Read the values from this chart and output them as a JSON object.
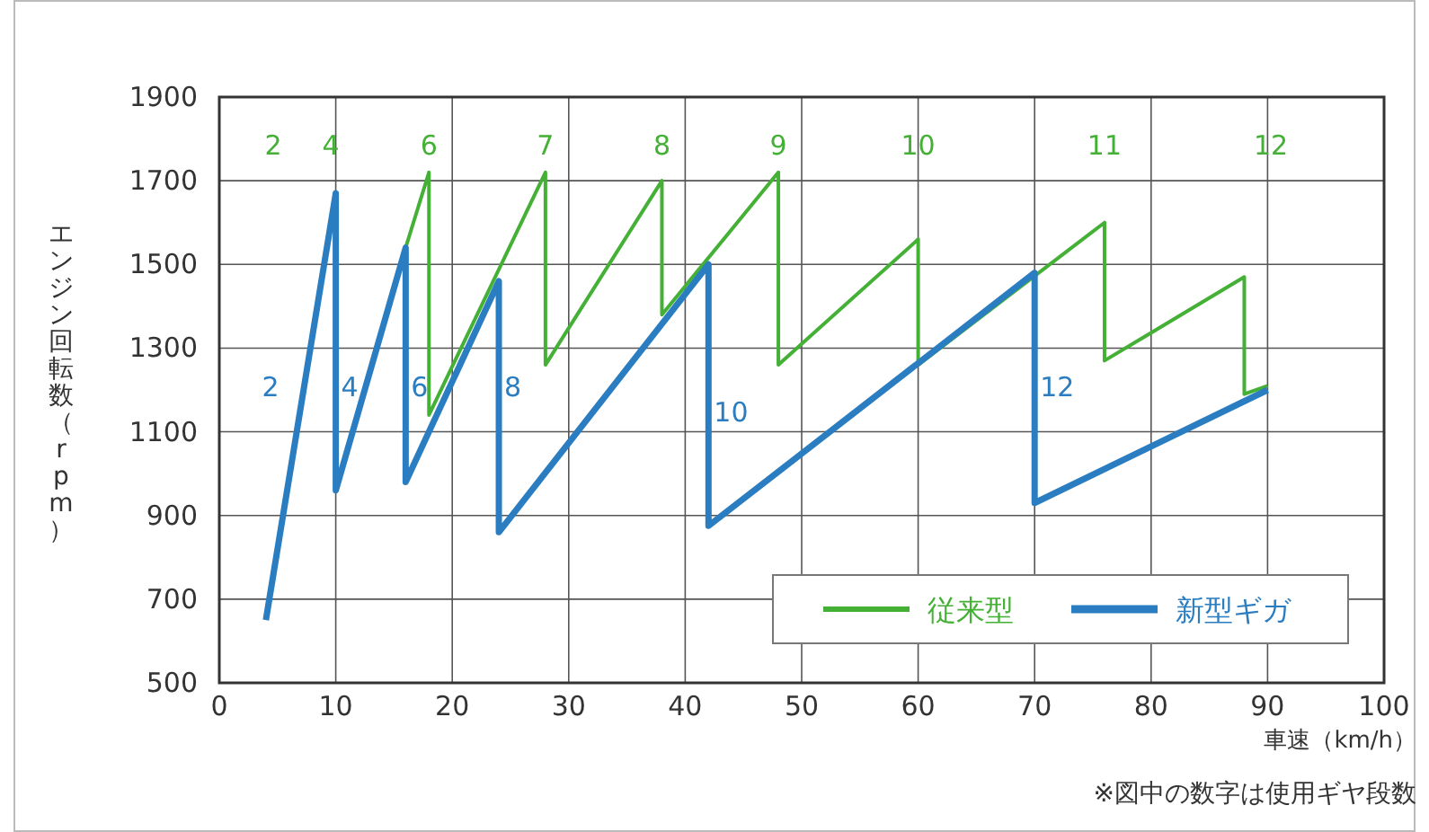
{
  "chart_data": {
    "type": "line",
    "xlabel": "車速（km/h）",
    "ylabel": "エンジン回転数（rpm）",
    "series": [
      {
        "name": "従来型",
        "color": "#44b035",
        "x": [
          16,
          18,
          18,
          28,
          28,
          38,
          38,
          48,
          48,
          60,
          60,
          76,
          76,
          88,
          88,
          90
        ],
        "values": [
          1540,
          1720,
          1140,
          1720,
          1260,
          1700,
          1380,
          1720,
          1260,
          1560,
          1260,
          1600,
          1270,
          1470,
          1190,
          1210
        ]
      },
      {
        "name": "新型ギガ",
        "color": "#2a7dc0",
        "x": [
          4,
          10,
          10,
          16,
          16,
          24,
          24,
          42,
          42,
          70,
          70,
          90
        ],
        "values": [
          650,
          1670,
          960,
          1540,
          980,
          1460,
          860,
          1500,
          875,
          1480,
          930,
          1200
        ]
      }
    ],
    "xlim": [
      0,
      100
    ],
    "xticks": [
      0,
      10,
      20,
      30,
      40,
      50,
      60,
      70,
      80,
      90,
      100
    ],
    "ylim": [
      500,
      1900
    ],
    "yticks": [
      500,
      700,
      900,
      1100,
      1300,
      1500,
      1700,
      1900
    ],
    "grid": true,
    "legend": "bottom right",
    "annotations": [
      "2",
      "4",
      {
        "text": "6",
        "x": 18,
        "y": 1720
      },
      {
        "text": "7",
        "x": 28,
        "y": 1720
      },
      {
        "text": "8",
        "x": 38,
        "y": 1700
      },
      {
        "text": "9",
        "x": 48,
        "y": 1720
      },
      {
        "text": "10",
        "x": 60,
        "y": 1560
      },
      {
        "text": "11",
        "x": 76,
        "y": 1600
      },
      "12",
      {
        "text": "2",
        "x": 7.3,
        "y": 1210
      },
      {
        "text": "4",
        "x": 10,
        "y": 1210
      },
      {
        "text": "6",
        "x": 16,
        "y": 1210
      },
      {
        "text": "8",
        "x": 24,
        "y": 1210
      },
      {
        "text": "10",
        "x": 42,
        "y": 1150
      },
      {
        "text": "12",
        "x": 70,
        "y": 1210
      },
      "※図中の数字は使用ギヤ段数"
    ]
  }
}
